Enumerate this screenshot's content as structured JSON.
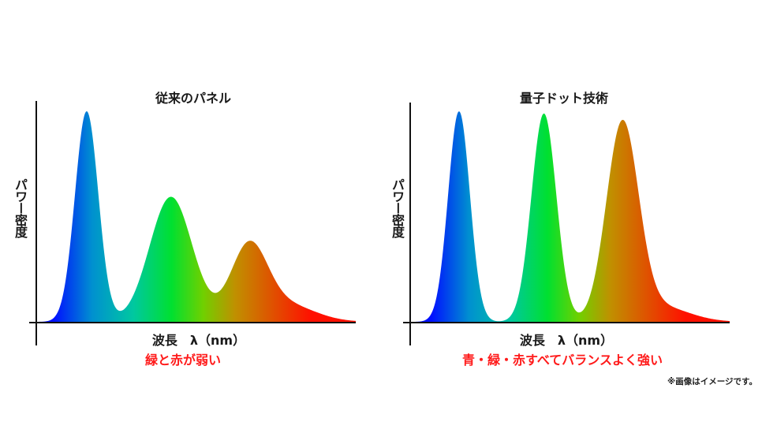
{
  "chart_data": [
    {
      "type": "area",
      "title": "従来のパネル",
      "xlabel": "波長　λ（nm）",
      "ylabel": "パワー密度",
      "caption": "緑と赤が弱い",
      "xlim": [
        0,
        100
      ],
      "ylim": [
        0,
        100
      ],
      "grid": false,
      "peaks": [
        {
          "name": "blue",
          "center": 17,
          "height": 96,
          "width": 3.6
        },
        {
          "name": "green",
          "center": 43,
          "height": 57,
          "width": 6.6
        },
        {
          "name": "red",
          "center": 67,
          "height": 33,
          "width": 5.6
        },
        {
          "name": "red-tail",
          "center": 78,
          "height": 8,
          "width": 9
        }
      ]
    },
    {
      "type": "area",
      "title": "量子ドット技術",
      "xlabel": "波長　λ（nm）",
      "ylabel": "パワー密度",
      "caption": "青・緑・赤すべてバランスよく強い",
      "xlim": [
        0,
        100
      ],
      "ylim": [
        0,
        100
      ],
      "grid": false,
      "peaks": [
        {
          "name": "blue",
          "center": 15.5,
          "height": 96,
          "width": 3.4
        },
        {
          "name": "green",
          "center": 42,
          "height": 95,
          "width": 3.9
        },
        {
          "name": "red",
          "center": 66.5,
          "height": 89,
          "width": 5.0
        },
        {
          "name": "red-tail",
          "center": 78,
          "height": 7,
          "width": 9
        }
      ]
    }
  ],
  "note": "※画像はイメージです。",
  "colors": {
    "caption": "#ff1a1a",
    "gradient": [
      "#0010ff",
      "#0090d0",
      "#00c8a0",
      "#00e030",
      "#70d000",
      "#c09000",
      "#e05000",
      "#ff1000"
    ]
  }
}
